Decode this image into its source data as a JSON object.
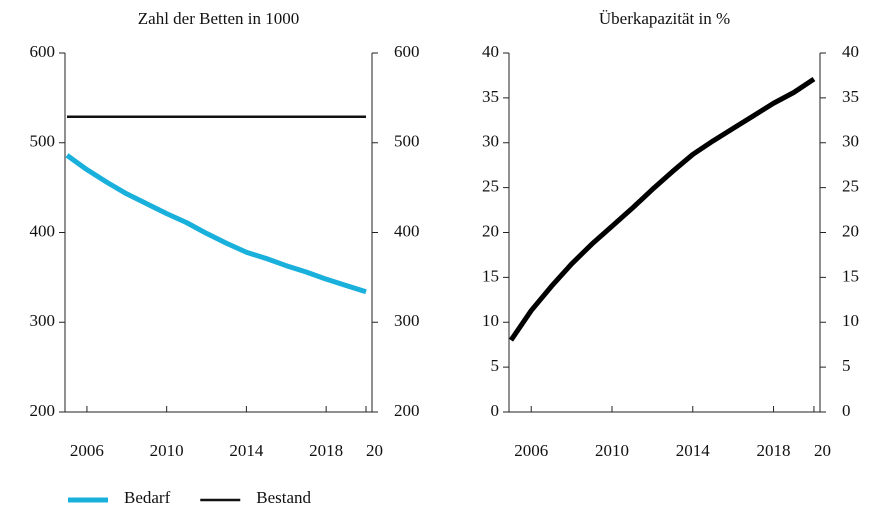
{
  "chart_data": [
    {
      "type": "line",
      "title": "Zahl der Betten in 1000",
      "x": [
        2005,
        2006,
        2007,
        2008,
        2009,
        2010,
        2011,
        2012,
        2013,
        2014,
        2015,
        2016,
        2017,
        2018,
        2019,
        2020
      ],
      "series": [
        {
          "name": "Bedarf",
          "color": "#1ab0dc",
          "width": 5,
          "values": [
            486,
            470,
            456,
            443,
            432,
            421,
            411,
            399,
            388,
            378,
            371,
            363,
            356,
            348,
            341,
            334
          ]
        },
        {
          "name": "Bestand",
          "color": "#111111",
          "width": 2.5,
          "values": [
            529,
            529,
            529,
            529,
            529,
            529,
            529,
            529,
            529,
            529,
            529,
            529,
            529,
            529,
            529,
            529
          ]
        }
      ],
      "xlim": [
        2004.9,
        2020.3
      ],
      "xticks": [
        2006,
        2010,
        2014,
        2018,
        {
          "value": 2020,
          "label": "20"
        }
      ],
      "ylim": [
        200,
        600
      ],
      "yticks": [
        200,
        300,
        400,
        500,
        600
      ],
      "y2lim": [
        200,
        600
      ],
      "y2ticks": [
        200,
        300,
        400,
        500,
        600
      ],
      "legend": "bottom"
    },
    {
      "type": "line",
      "title": "Überkapazität in %",
      "x": [
        2005,
        2006,
        2007,
        2008,
        2009,
        2010,
        2011,
        2012,
        2013,
        2014,
        2015,
        2016,
        2017,
        2018,
        2019,
        2020
      ],
      "series": [
        {
          "color": "#000000",
          "width": 5,
          "values": [
            8,
            11.3,
            14,
            16.5,
            18.7,
            20.7,
            22.7,
            24.8,
            26.8,
            28.7,
            30.2,
            31.6,
            33,
            34.4,
            35.6,
            37.1
          ]
        }
      ],
      "xlim": [
        2004.9,
        2020.3
      ],
      "xticks": [
        2006,
        2010,
        2014,
        2018,
        {
          "value": 2020,
          "label": "20"
        }
      ],
      "ylim": [
        0,
        40
      ],
      "yticks": [
        0,
        5,
        10,
        15,
        20,
        25,
        30,
        35,
        40
      ],
      "y2lim": [
        0,
        40
      ],
      "y2ticks": [
        0,
        5,
        10,
        15,
        20,
        25,
        30,
        35,
        40
      ]
    }
  ]
}
